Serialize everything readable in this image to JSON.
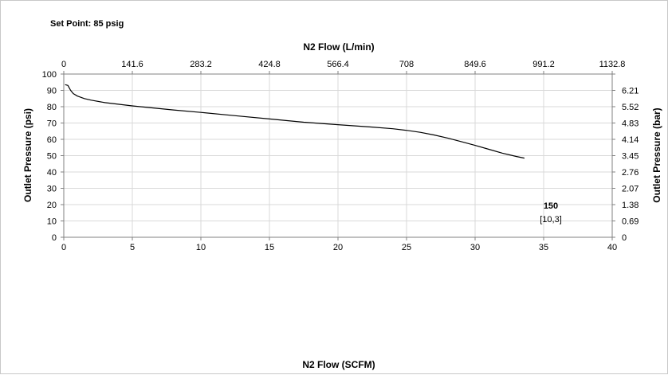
{
  "chart_data": {
    "type": "line",
    "title": "Set Point: 85 psig",
    "xlabel": "N2 Flow (SCFM)",
    "x2label": "N2 Flow (L/min)",
    "ylabel": "Outlet Pressure (psi)",
    "y2label": "Outlet Pressure (bar)",
    "xlim": [
      0,
      40
    ],
    "ylim": [
      0,
      100
    ],
    "xticks": [
      "0",
      "5",
      "10",
      "15",
      "20",
      "25",
      "30",
      "35",
      "40"
    ],
    "yticks": [
      "0",
      "10",
      "20",
      "30",
      "40",
      "50",
      "60",
      "70",
      "80",
      "90",
      "100"
    ],
    "x2ticks": [
      "0",
      "141.6",
      "283.2",
      "424.8",
      "566.4",
      "708",
      "849.6",
      "991.2",
      "1132.8"
    ],
    "y2ticks": [
      "0",
      "0.69",
      "1.38",
      "2.07",
      "2.76",
      "3.45",
      "4.14",
      "4.83",
      "5.52",
      "6.21"
    ],
    "grid": true,
    "series": [
      {
        "x": [
          0.1,
          0.3,
          0.5,
          0.7,
          1.0,
          1.5,
          2.0,
          3.0,
          5.0,
          8.0,
          10.0,
          12.5,
          15.0,
          17.5,
          20.0,
          22.5,
          24.0,
          25.0,
          26.0,
          27.0,
          28.0,
          29.0,
          30.0,
          31.0,
          32.0,
          33.0,
          33.6
        ],
        "y": [
          93.5,
          93.0,
          90.0,
          88.0,
          86.5,
          85.0,
          84.0,
          82.5,
          80.5,
          78.0,
          76.5,
          74.5,
          72.5,
          70.5,
          69.0,
          67.5,
          66.5,
          65.5,
          64.3,
          62.7,
          60.8,
          58.6,
          56.3,
          53.9,
          51.5,
          49.5,
          48.5
        ]
      }
    ],
    "annotation": {
      "label": "150",
      "sublabel": "[10,3]"
    }
  }
}
